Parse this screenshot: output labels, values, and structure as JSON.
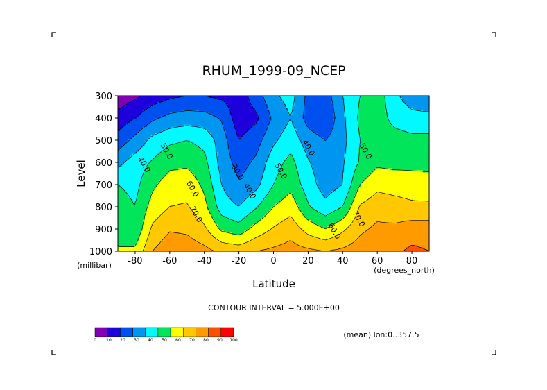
{
  "chart_data": {
    "type": "contour",
    "title": "RHUM_1999-09_NCEP",
    "xlabel": "Latitude",
    "ylabel": "Level",
    "x_unit": "(degrees_north)",
    "y_unit": "(millibar)",
    "xlim": [
      -90,
      90
    ],
    "ylim": [
      1000,
      300
    ],
    "x_ticks": [
      -80,
      -60,
      -40,
      -20,
      0,
      20,
      40,
      60,
      80
    ],
    "y_ticks": [
      300,
      400,
      500,
      600,
      700,
      800,
      900,
      1000
    ],
    "contour_interval_text": "CONTOUR INTERVAL = 5.000E+00",
    "subtitle_right": "(mean) lon:0..357.5",
    "grid": false,
    "colorbar": {
      "ticks": [
        0,
        10,
        20,
        30,
        40,
        50,
        60,
        70,
        80,
        90,
        100
      ],
      "colors": [
        "#8200b4",
        "#1e00dc",
        "#0050f0",
        "#0096f0",
        "#00faff",
        "#00e55a",
        "#ffff00",
        "#ffc800",
        "#ff9a00",
        "#ff5000",
        "#ff0000"
      ]
    },
    "contour_labels": [
      {
        "lat": -76,
        "level": 615,
        "text": "40.0"
      },
      {
        "lat": -63,
        "level": 555,
        "text": "50.0"
      },
      {
        "lat": -48,
        "level": 725,
        "text": "60.0"
      },
      {
        "lat": -46,
        "level": 840,
        "text": "70.0"
      },
      {
        "lat": -22,
        "level": 650,
        "text": "30.0"
      },
      {
        "lat": -15,
        "level": 735,
        "text": "40.0"
      },
      {
        "lat": 3,
        "level": 645,
        "text": "50.0"
      },
      {
        "lat": 19,
        "level": 540,
        "text": "40.0"
      },
      {
        "lat": 34,
        "level": 915,
        "text": "60.0"
      },
      {
        "lat": 52,
        "level": 555,
        "text": "50.0"
      },
      {
        "lat": 48,
        "level": 860,
        "text": "70.0"
      }
    ],
    "field_lats": [
      -90,
      -80,
      -70,
      -60,
      -50,
      -40,
      -30,
      -20,
      -10,
      0,
      10,
      20,
      30,
      40,
      50,
      60,
      70,
      80,
      90
    ],
    "field_levels": [
      300,
      400,
      500,
      600,
      700,
      800,
      900,
      1000
    ],
    "field_values": [
      [
        3,
        8,
        14,
        18,
        20,
        20,
        18,
        15,
        25,
        38,
        44,
        27,
        25,
        40,
        50,
        56,
        42,
        35,
        32
      ],
      [
        14,
        20,
        28,
        33,
        35,
        34,
        29,
        14,
        18,
        32,
        40,
        26,
        20,
        38,
        52,
        56,
        46,
        43,
        43
      ],
      [
        24,
        33,
        43,
        48,
        50,
        47,
        35,
        20,
        26,
        38,
        46,
        35,
        30,
        37,
        50,
        57,
        55,
        53,
        53
      ],
      [
        37,
        45,
        51,
        57,
        58,
        53,
        36,
        26,
        32,
        46,
        53,
        41,
        33,
        39,
        51,
        58,
        57,
        57,
        57
      ],
      [
        50,
        47,
        58,
        65,
        66,
        58,
        40,
        31,
        37,
        50,
        57,
        45,
        35,
        40,
        60,
        67,
        66,
        65,
        64
      ],
      [
        55,
        50,
        64,
        70,
        71,
        63,
        45,
        40,
        49,
        60,
        66,
        51,
        43,
        50,
        71,
        76,
        74,
        72,
        72
      ],
      [
        60,
        52,
        72,
        79,
        78,
        72,
        58,
        54,
        64,
        71,
        76,
        66,
        60,
        68,
        78,
        82,
        82,
        85,
        85
      ],
      [
        60,
        62,
        80,
        87,
        86,
        83,
        78,
        76,
        80,
        82,
        84,
        82,
        80,
        82,
        85,
        88,
        88,
        92,
        90
      ]
    ]
  },
  "corner_marks": [
    "tl",
    "tr",
    "bl",
    "br"
  ]
}
